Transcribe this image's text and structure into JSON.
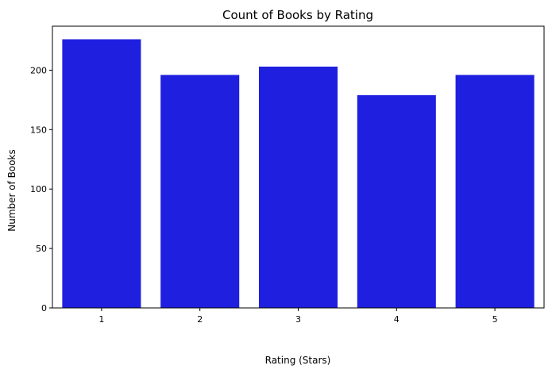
{
  "chart_data": {
    "type": "bar",
    "title": "Count of Books by Rating",
    "xlabel": "Rating (Stars)",
    "ylabel": "Number of Books",
    "categories": [
      "1",
      "2",
      "3",
      "4",
      "5"
    ],
    "values": [
      226,
      196,
      203,
      179,
      196
    ],
    "ylim": [
      0,
      237
    ],
    "yticks": [
      0,
      50,
      100,
      150,
      200
    ],
    "bar_color": "#1f1fe0",
    "grid": false,
    "legend": "none"
  }
}
